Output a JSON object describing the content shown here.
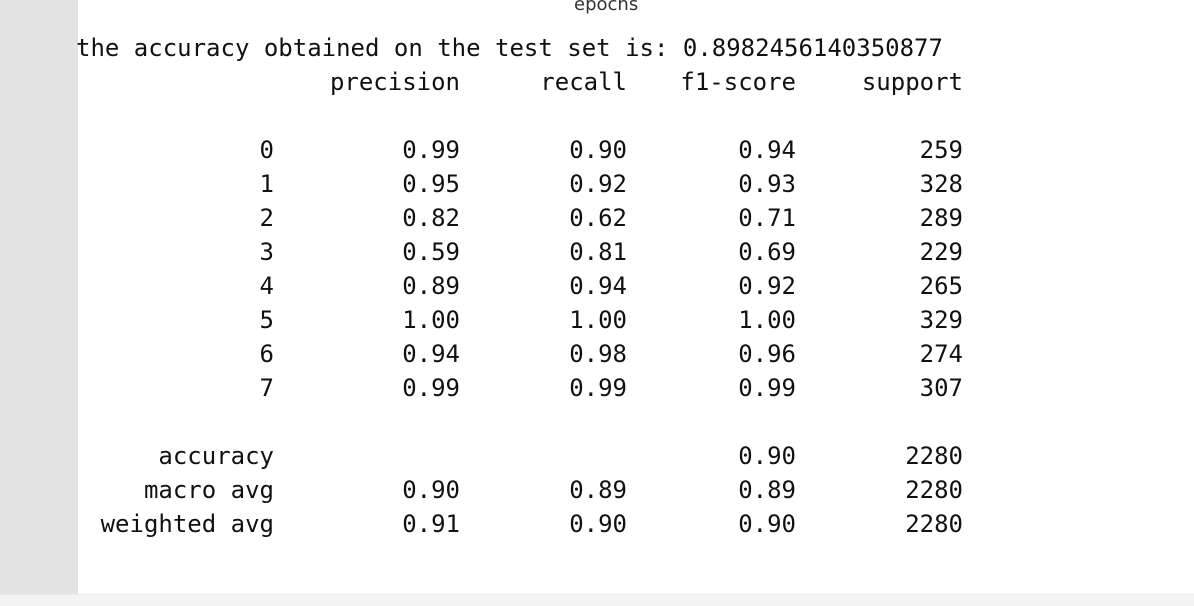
{
  "axis_label": "epochs",
  "accuracy_line": "the accuracy obtained on the test set is: 0.8982456140350877",
  "headers": {
    "precision": "precision",
    "recall": "recall",
    "f1": "f1-score",
    "support": "support"
  },
  "rows": [
    {
      "label": "0",
      "precision": "0.99",
      "recall": "0.90",
      "f1": "0.94",
      "support": "259"
    },
    {
      "label": "1",
      "precision": "0.95",
      "recall": "0.92",
      "f1": "0.93",
      "support": "328"
    },
    {
      "label": "2",
      "precision": "0.82",
      "recall": "0.62",
      "f1": "0.71",
      "support": "289"
    },
    {
      "label": "3",
      "precision": "0.59",
      "recall": "0.81",
      "f1": "0.69",
      "support": "229"
    },
    {
      "label": "4",
      "precision": "0.89",
      "recall": "0.94",
      "f1": "0.92",
      "support": "265"
    },
    {
      "label": "5",
      "precision": "1.00",
      "recall": "1.00",
      "f1": "1.00",
      "support": "329"
    },
    {
      "label": "6",
      "precision": "0.94",
      "recall": "0.98",
      "f1": "0.96",
      "support": "274"
    },
    {
      "label": "7",
      "precision": "0.99",
      "recall": "0.99",
      "f1": "0.99",
      "support": "307"
    }
  ],
  "summary": [
    {
      "label": "accuracy",
      "precision": "",
      "recall": "",
      "f1": "0.90",
      "support": "2280"
    },
    {
      "label": "macro avg",
      "precision": "0.90",
      "recall": "0.89",
      "f1": "0.89",
      "support": "2280"
    },
    {
      "label": "weighted avg",
      "precision": "0.91",
      "recall": "0.90",
      "f1": "0.90",
      "support": "2280"
    }
  ]
}
